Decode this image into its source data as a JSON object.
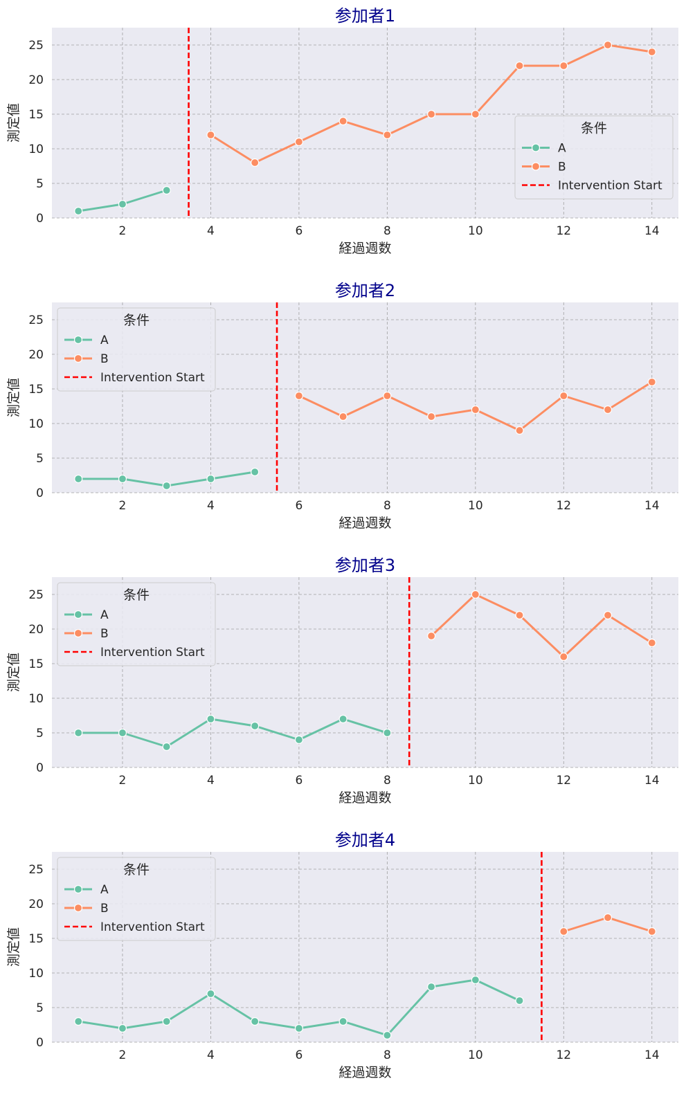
{
  "chart_data": [
    {
      "type": "line",
      "title": "参加者1",
      "xlabel": "経過週数",
      "ylabel": "測定値",
      "xlim": [
        0.4,
        14.6
      ],
      "ylim": [
        0,
        27.5
      ],
      "xticks": [
        2,
        4,
        6,
        8,
        10,
        12,
        14
      ],
      "yticks": [
        0,
        5,
        10,
        15,
        20,
        25
      ],
      "grid": true,
      "intervention_x": 3.5,
      "legend": {
        "title": "条件",
        "position": "center-right",
        "intervention_label": "Intervention Start"
      },
      "series": [
        {
          "name": "A",
          "color": "#66c2a5",
          "x": [
            1,
            2,
            3
          ],
          "y": [
            1,
            2,
            4
          ]
        },
        {
          "name": "B",
          "color": "#fc8d62",
          "x": [
            4,
            5,
            6,
            7,
            8,
            9,
            10,
            11,
            12,
            13,
            14
          ],
          "y": [
            12,
            8,
            11,
            14,
            12,
            15,
            15,
            22,
            22,
            25,
            24
          ]
        }
      ]
    },
    {
      "type": "line",
      "title": "参加者2",
      "xlabel": "経過週数",
      "ylabel": "測定値",
      "xlim": [
        0.4,
        14.6
      ],
      "ylim": [
        0,
        27.5
      ],
      "xticks": [
        2,
        4,
        6,
        8,
        10,
        12,
        14
      ],
      "yticks": [
        0,
        5,
        10,
        15,
        20,
        25
      ],
      "grid": true,
      "intervention_x": 5.5,
      "legend": {
        "title": "条件",
        "position": "upper-left",
        "intervention_label": "Intervention Start"
      },
      "series": [
        {
          "name": "A",
          "color": "#66c2a5",
          "x": [
            1,
            2,
            3,
            4,
            5
          ],
          "y": [
            2,
            2,
            1,
            2,
            3
          ]
        },
        {
          "name": "B",
          "color": "#fc8d62",
          "x": [
            6,
            7,
            8,
            9,
            10,
            11,
            12,
            13,
            14
          ],
          "y": [
            14,
            11,
            14,
            11,
            12,
            9,
            14,
            12,
            16
          ]
        }
      ]
    },
    {
      "type": "line",
      "title": "参加者3",
      "xlabel": "経過週数",
      "ylabel": "測定値",
      "xlim": [
        0.4,
        14.6
      ],
      "ylim": [
        0,
        27.5
      ],
      "xticks": [
        2,
        4,
        6,
        8,
        10,
        12,
        14
      ],
      "yticks": [
        0,
        5,
        10,
        15,
        20,
        25
      ],
      "grid": true,
      "intervention_x": 8.5,
      "legend": {
        "title": "条件",
        "position": "upper-left",
        "intervention_label": "Intervention Start"
      },
      "series": [
        {
          "name": "A",
          "color": "#66c2a5",
          "x": [
            1,
            2,
            3,
            4,
            5,
            6,
            7,
            8
          ],
          "y": [
            5,
            5,
            3,
            7,
            6,
            4,
            7,
            5
          ]
        },
        {
          "name": "B",
          "color": "#fc8d62",
          "x": [
            9,
            10,
            11,
            12,
            13,
            14
          ],
          "y": [
            19,
            25,
            22,
            16,
            22,
            18
          ]
        }
      ]
    },
    {
      "type": "line",
      "title": "参加者4",
      "xlabel": "経過週数",
      "ylabel": "測定値",
      "xlim": [
        0.4,
        14.6
      ],
      "ylim": [
        0,
        27.5
      ],
      "xticks": [
        2,
        4,
        6,
        8,
        10,
        12,
        14
      ],
      "yticks": [
        0,
        5,
        10,
        15,
        20,
        25
      ],
      "grid": true,
      "intervention_x": 11.5,
      "legend": {
        "title": "条件",
        "position": "upper-left",
        "intervention_label": "Intervention Start"
      },
      "series": [
        {
          "name": "A",
          "color": "#66c2a5",
          "x": [
            1,
            2,
            3,
            4,
            5,
            6,
            7,
            8,
            9,
            10,
            11
          ],
          "y": [
            3,
            2,
            3,
            7,
            3,
            2,
            3,
            1,
            8,
            9,
            6
          ]
        },
        {
          "name": "B",
          "color": "#fc8d62",
          "x": [
            12,
            13,
            14
          ],
          "y": [
            16,
            18,
            16
          ]
        }
      ]
    }
  ],
  "colors": {
    "plot_background": "#eaeaf2",
    "grid": "#a0a0a0",
    "intervention_line": "#ff0000",
    "title": "#00008B",
    "text": "#262626"
  }
}
